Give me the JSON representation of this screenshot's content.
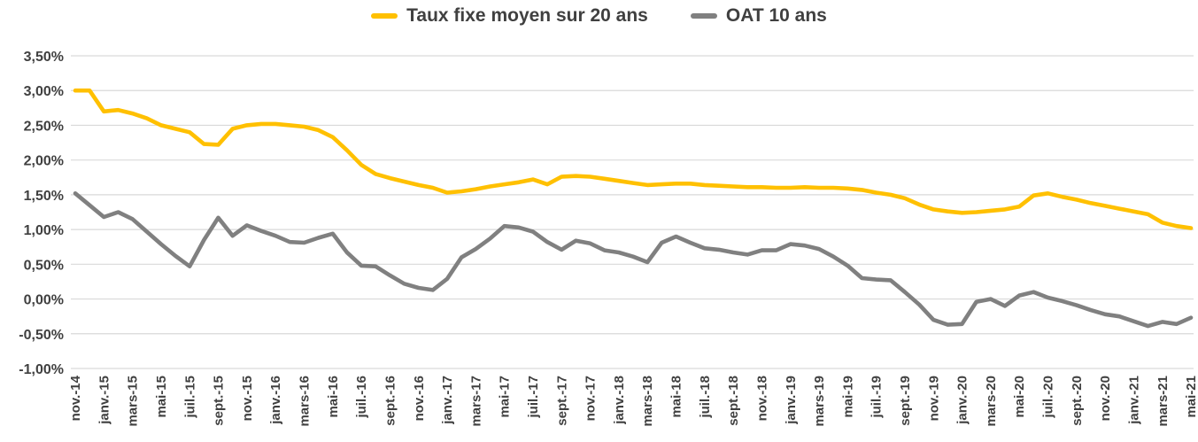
{
  "colors": {
    "series_taux_fixe": "#FFC000",
    "series_oat": "#808080",
    "grid_line": "#D9D9D9",
    "axis_text": "#404040",
    "background": "#FFFFFF"
  },
  "legend": {
    "items": [
      {
        "label": "Taux fixe moyen sur 20 ans",
        "color": "#FFC000"
      },
      {
        "label": "OAT 10 ans",
        "color": "#808080"
      }
    ]
  },
  "chart_data": {
    "type": "line",
    "title": "",
    "xlabel": "",
    "ylabel": "",
    "ylim": [
      -1.0,
      3.5
    ],
    "grid": "horizontal",
    "legend_position": "top-center",
    "y_tick_labels": [
      "3,50%",
      "3,00%",
      "2,50%",
      "2,00%",
      "1,50%",
      "1,00%",
      "0,50%",
      "0,00%",
      "-0,50%",
      "-1,00%"
    ],
    "y_tick_values": [
      3.5,
      3.0,
      2.5,
      2.0,
      1.5,
      1.0,
      0.5,
      0.0,
      -0.5,
      -1.0
    ],
    "x_tick_step": 2,
    "x_tick_labels": [
      "nov.-14",
      "janv.-15",
      "mars-15",
      "mai-15",
      "juil.-15",
      "sept.-15",
      "nov.-15",
      "janv.-16",
      "mars-16",
      "mai-16",
      "juil.-16",
      "sept.-16",
      "nov.-16",
      "janv.-17",
      "mars-17",
      "mai-17",
      "juil.-17",
      "sept.-17",
      "nov.-17",
      "janv.-18",
      "mars-18",
      "mai-18",
      "juil.-18",
      "sept.-18",
      "nov.-18",
      "janv.-19",
      "mars-19",
      "mai-19",
      "juil.-19",
      "sept.-19",
      "nov.-19",
      "janv.-20",
      "mars-20",
      "mai-20",
      "juil.-20",
      "sept.-20",
      "nov.-20",
      "janv.-21",
      "mars-21",
      "mai-21"
    ],
    "series": [
      {
        "name": "Taux fixe moyen sur 20 ans",
        "color": "#FFC000",
        "values": [
          3.0,
          3.0,
          2.7,
          2.72,
          2.67,
          2.6,
          2.5,
          2.45,
          2.4,
          2.23,
          2.22,
          2.45,
          2.5,
          2.52,
          2.52,
          2.5,
          2.48,
          2.43,
          2.33,
          2.14,
          1.93,
          1.8,
          1.74,
          1.69,
          1.64,
          1.6,
          1.53,
          1.55,
          1.58,
          1.62,
          1.65,
          1.68,
          1.72,
          1.65,
          1.76,
          1.77,
          1.76,
          1.73,
          1.7,
          1.67,
          1.64,
          1.65,
          1.66,
          1.66,
          1.64,
          1.63,
          1.62,
          1.61,
          1.61,
          1.6,
          1.6,
          1.61,
          1.6,
          1.6,
          1.59,
          1.57,
          1.53,
          1.5,
          1.45,
          1.36,
          1.29,
          1.26,
          1.24,
          1.25,
          1.27,
          1.29,
          1.33,
          1.49,
          1.52,
          1.47,
          1.43,
          1.38,
          1.34,
          1.3,
          1.26,
          1.22,
          1.1,
          1.05,
          1.02
        ]
      },
      {
        "name": "OAT 10 ans",
        "color": "#808080",
        "values": [
          1.52,
          1.35,
          1.18,
          1.25,
          1.15,
          0.97,
          0.79,
          0.62,
          0.47,
          0.85,
          1.17,
          0.91,
          1.06,
          0.98,
          0.91,
          0.82,
          0.81,
          0.88,
          0.94,
          0.67,
          0.48,
          0.47,
          0.34,
          0.22,
          0.16,
          0.13,
          0.29,
          0.6,
          0.72,
          0.87,
          1.05,
          1.03,
          0.97,
          0.82,
          0.71,
          0.84,
          0.8,
          0.7,
          0.67,
          0.61,
          0.53,
          0.81,
          0.9,
          0.81,
          0.73,
          0.71,
          0.67,
          0.64,
          0.7,
          0.7,
          0.79,
          0.77,
          0.72,
          0.61,
          0.48,
          0.3,
          0.28,
          0.27,
          0.1,
          -0.08,
          -0.3,
          -0.37,
          -0.36,
          -0.04,
          0.0,
          -0.1,
          0.05,
          0.1,
          0.02,
          -0.03,
          -0.09,
          -0.16,
          -0.22,
          -0.25,
          -0.32,
          -0.39,
          -0.33,
          -0.36,
          -0.27
        ]
      }
    ]
  }
}
